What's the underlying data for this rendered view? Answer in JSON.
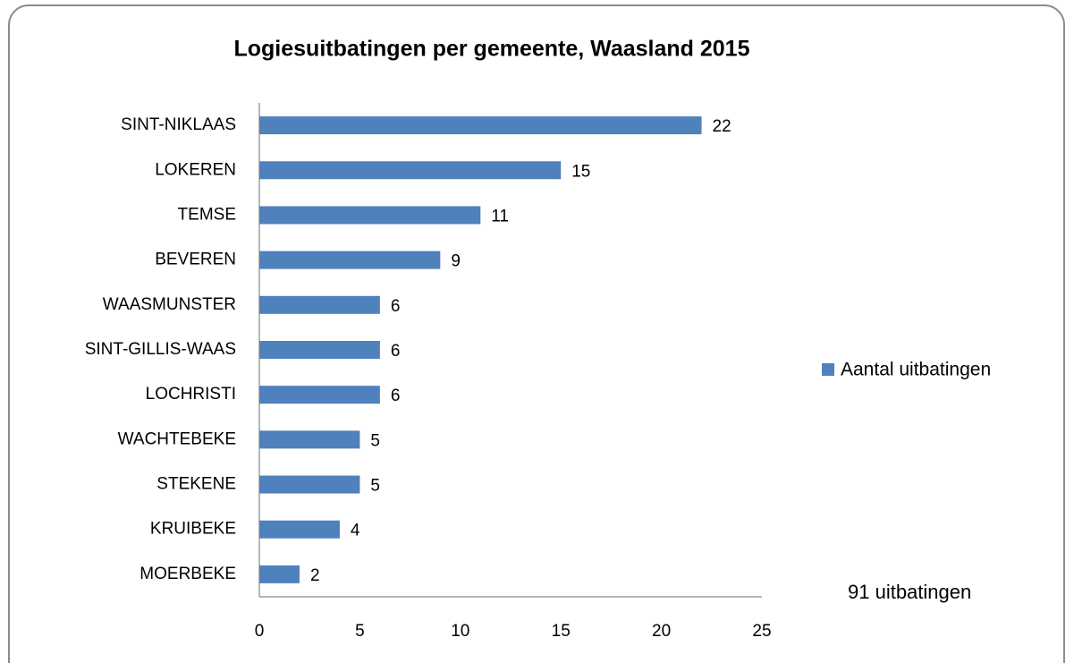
{
  "chart_data": {
    "type": "bar",
    "orientation": "horizontal",
    "title": "Logiesuitbatingen per gemeente, Waasland  2015",
    "categories": [
      "SINT-NIKLAAS",
      "LOKEREN",
      "TEMSE",
      "BEVEREN",
      "WAASMUNSTER",
      "SINT-GILLIS-WAAS",
      "LOCHRISTI",
      "WACHTEBEKE",
      "STEKENE",
      "KRUIBEKE",
      "MOERBEKE"
    ],
    "series": [
      {
        "name": "Aantal uitbatingen",
        "color": "#4f81bd",
        "values": [
          22,
          15,
          11,
          9,
          6,
          6,
          6,
          5,
          5,
          4,
          2
        ]
      }
    ],
    "xlim": [
      0,
      25
    ],
    "xticks": [
      0,
      5,
      10,
      15,
      20,
      25
    ],
    "grid": false,
    "legend": "right",
    "annotation": "91 uitbatingen"
  }
}
